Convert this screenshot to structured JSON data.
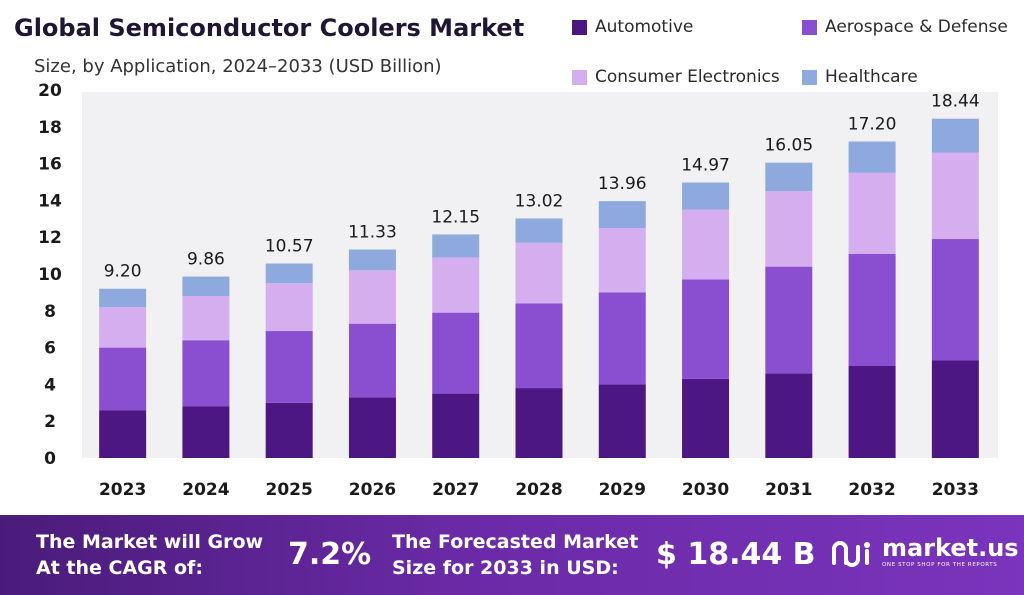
{
  "header": {
    "title": "Global Semiconductor Coolers Market",
    "subtitle": "Size, by Application, 2024–2033 (USD Billion)"
  },
  "legend": [
    {
      "label": "Automotive",
      "color": "#4d1783"
    },
    {
      "label": "Aerospace & Defense",
      "color": "#8a4fd1"
    },
    {
      "label": "Consumer Electronics",
      "color": "#d5aef0"
    },
    {
      "label": "Healthcare",
      "color": "#8ea9de"
    }
  ],
  "chart_data": {
    "type": "bar",
    "stacked": true,
    "categories": [
      "2023",
      "2024",
      "2025",
      "2026",
      "2027",
      "2028",
      "2029",
      "2030",
      "2031",
      "2032",
      "2033"
    ],
    "series": [
      {
        "name": "Automotive",
        "color": "#4d1783",
        "values": [
          2.6,
          2.8,
          3.0,
          3.3,
          3.5,
          3.8,
          4.0,
          4.3,
          4.6,
          5.0,
          5.3
        ]
      },
      {
        "name": "Aerospace & Defense",
        "color": "#8a4fd1",
        "values": [
          3.4,
          3.6,
          3.9,
          4.0,
          4.4,
          4.6,
          5.0,
          5.4,
          5.8,
          6.1,
          6.6
        ]
      },
      {
        "name": "Consumer Electronics",
        "color": "#d5aef0",
        "values": [
          2.2,
          2.4,
          2.6,
          2.9,
          3.0,
          3.3,
          3.5,
          3.8,
          4.1,
          4.4,
          4.7
        ]
      },
      {
        "name": "Healthcare",
        "color": "#8ea9de",
        "values": [
          1.0,
          1.06,
          1.07,
          1.13,
          1.25,
          1.32,
          1.46,
          1.47,
          1.55,
          1.7,
          1.84
        ]
      }
    ],
    "totals": [
      "9.20",
      "9.86",
      "10.57",
      "11.33",
      "12.15",
      "13.02",
      "13.96",
      "14.97",
      "16.05",
      "17.20",
      "18.44"
    ],
    "y_ticks": [
      "0",
      "2",
      "4",
      "6",
      "8",
      "10",
      "12",
      "14",
      "16",
      "18",
      "20"
    ],
    "ylim": [
      0,
      20
    ],
    "grid": false,
    "legend_position": "top-right"
  },
  "footer": {
    "cagr_line1": "The Market will Grow",
    "cagr_line2": "At the CAGR of:",
    "cagr_value": "7.2%",
    "forecast_line1": "The Forecasted Market",
    "forecast_line2": "Size for 2033 in USD:",
    "forecast_value": "$ 18.44 B",
    "brand_name": "market.us",
    "brand_tagline": "ONE STOP SHOP FOR THE REPORTS"
  }
}
